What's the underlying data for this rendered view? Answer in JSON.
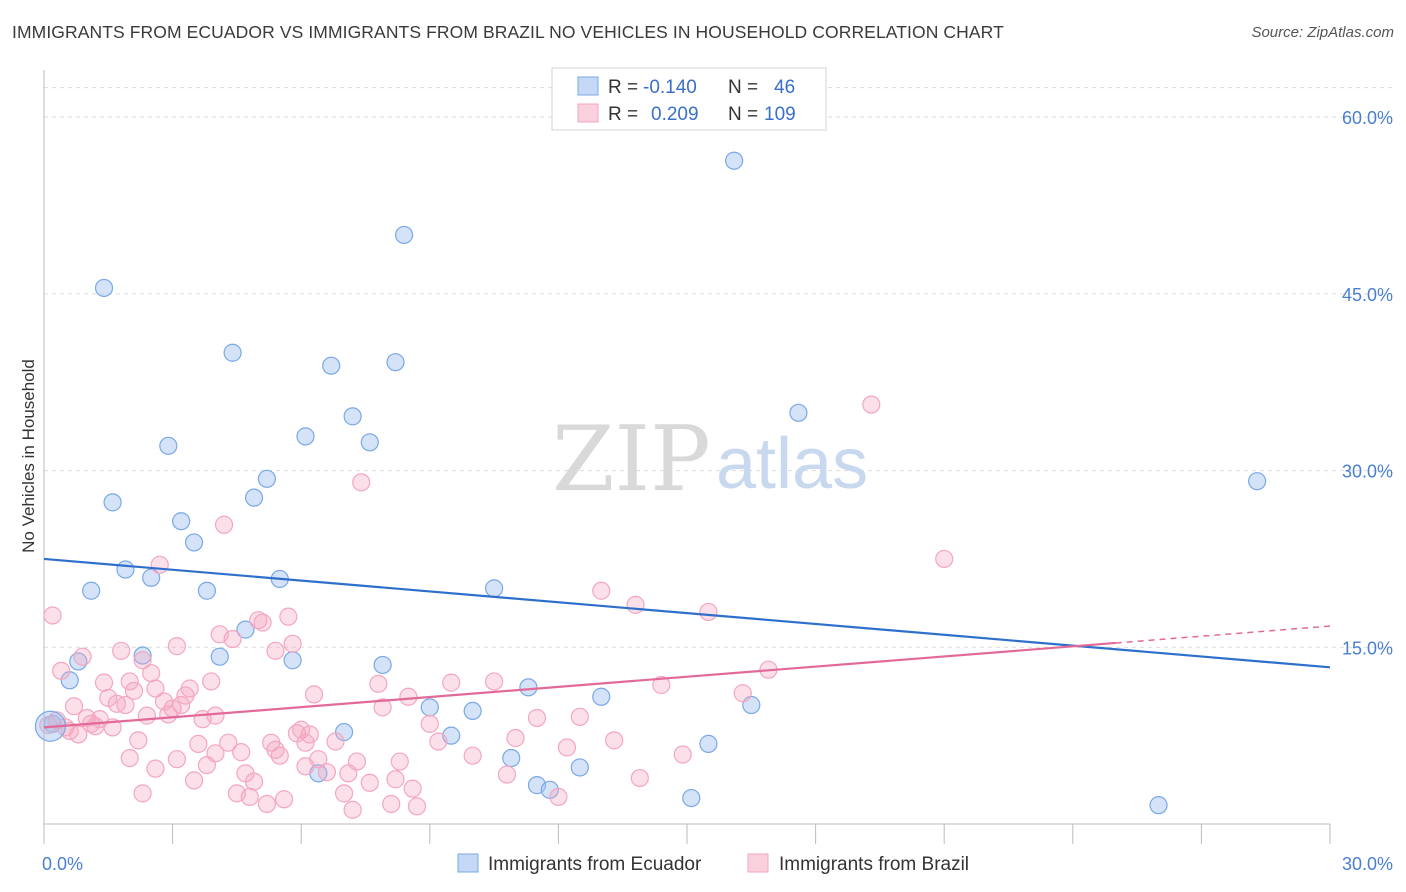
{
  "title": "IMMIGRANTS FROM ECUADOR VS IMMIGRANTS FROM BRAZIL NO VEHICLES IN HOUSEHOLD CORRELATION CHART",
  "source": "Source: ZipAtlas.com",
  "watermark": {
    "zip": "ZIP",
    "atlas": "atlas"
  },
  "chart_data": {
    "type": "scatter",
    "title": "IMMIGRANTS FROM ECUADOR VS IMMIGRANTS FROM BRAZIL NO VEHICLES IN HOUSEHOLD CORRELATION CHART",
    "xlabel": "",
    "ylabel": "No Vehicles in Household",
    "xlim": [
      0,
      30
    ],
    "ylim": [
      0,
      64
    ],
    "x_tick_labels": [
      "0.0%",
      "30.0%"
    ],
    "y_ticks": [
      15,
      30,
      45,
      60
    ],
    "y_tick_labels": [
      "15.0%",
      "30.0%",
      "45.0%",
      "60.0%"
    ],
    "grid": true,
    "legend_position": "top-center",
    "legend": {
      "rows": [
        {
          "r_label": "R =",
          "r_value": "-0.140",
          "n_label": "N =",
          "n_value": "46"
        },
        {
          "r_label": "R =",
          "r_value": "0.209",
          "n_label": "N =",
          "n_value": "109"
        }
      ]
    },
    "series": [
      {
        "name": "Immigrants from Ecuador",
        "color": "#7aa8e8",
        "line_color": "#2f6fcc",
        "trend": {
          "x": [
            0,
            30
          ],
          "y": [
            22.5,
            13.3
          ],
          "dashed_from": null
        },
        "points": [
          [
            0.2,
            8.5
          ],
          [
            0.6,
            12.2
          ],
          [
            0.8,
            13.8
          ],
          [
            1.1,
            19.8
          ],
          [
            1.4,
            45.5
          ],
          [
            1.6,
            27.3
          ],
          [
            1.9,
            21.6
          ],
          [
            2.3,
            14.3
          ],
          [
            2.5,
            20.9
          ],
          [
            2.9,
            32.1
          ],
          [
            3.2,
            25.7
          ],
          [
            3.5,
            23.9
          ],
          [
            3.8,
            19.8
          ],
          [
            4.1,
            14.2
          ],
          [
            4.4,
            40.0
          ],
          [
            4.7,
            16.5
          ],
          [
            4.9,
            27.7
          ],
          [
            5.2,
            29.3
          ],
          [
            5.5,
            20.8
          ],
          [
            5.8,
            13.9
          ],
          [
            6.1,
            32.9
          ],
          [
            6.4,
            4.3
          ],
          [
            6.7,
            38.9
          ],
          [
            7.0,
            7.8
          ],
          [
            7.2,
            34.6
          ],
          [
            7.6,
            32.4
          ],
          [
            7.9,
            13.5
          ],
          [
            8.2,
            39.2
          ],
          [
            8.4,
            50.0
          ],
          [
            9.0,
            9.9
          ],
          [
            9.5,
            7.5
          ],
          [
            10.0,
            9.6
          ],
          [
            10.5,
            20.0
          ],
          [
            10.9,
            5.6
          ],
          [
            11.3,
            11.6
          ],
          [
            11.5,
            3.3
          ],
          [
            11.8,
            2.9
          ],
          [
            12.5,
            4.8
          ],
          [
            13.0,
            10.8
          ],
          [
            15.1,
            2.2
          ],
          [
            15.5,
            6.8
          ],
          [
            16.1,
            56.3
          ],
          [
            16.5,
            10.1
          ],
          [
            17.6,
            34.9
          ],
          [
            26.0,
            1.6
          ],
          [
            28.3,
            29.1
          ]
        ]
      },
      {
        "name": "Immigrants from Brazil",
        "color": "#f4a6c0",
        "line_color": "#e26a98",
        "trend": {
          "x": [
            0,
            30
          ],
          "y": [
            8.2,
            16.8
          ],
          "dashed_from": 25.0
        },
        "points": [
          [
            0.1,
            8.4
          ],
          [
            0.2,
            17.7
          ],
          [
            0.3,
            8.8
          ],
          [
            0.4,
            13.0
          ],
          [
            0.5,
            8.2
          ],
          [
            0.6,
            7.9
          ],
          [
            0.7,
            10.0
          ],
          [
            0.8,
            7.6
          ],
          [
            0.9,
            14.2
          ],
          [
            1.0,
            9.0
          ],
          [
            1.1,
            8.5
          ],
          [
            1.2,
            8.3
          ],
          [
            1.3,
            8.9
          ],
          [
            1.4,
            12.0
          ],
          [
            1.5,
            10.7
          ],
          [
            1.6,
            8.2
          ],
          [
            1.7,
            10.2
          ],
          [
            1.8,
            14.7
          ],
          [
            1.9,
            10.1
          ],
          [
            2.0,
            12.1
          ],
          [
            2.0,
            5.6
          ],
          [
            2.1,
            11.3
          ],
          [
            2.2,
            7.1
          ],
          [
            2.3,
            13.9
          ],
          [
            2.4,
            9.2
          ],
          [
            2.5,
            12.8
          ],
          [
            2.6,
            11.5
          ],
          [
            2.6,
            4.7
          ],
          [
            2.7,
            22.0
          ],
          [
            2.8,
            10.4
          ],
          [
            2.9,
            9.3
          ],
          [
            3.0,
            9.8
          ],
          [
            3.1,
            15.1
          ],
          [
            3.1,
            5.5
          ],
          [
            3.2,
            10.1
          ],
          [
            3.3,
            10.9
          ],
          [
            3.4,
            11.5
          ],
          [
            3.5,
            3.7
          ],
          [
            3.6,
            6.8
          ],
          [
            3.7,
            8.9
          ],
          [
            3.8,
            5.0
          ],
          [
            3.9,
            12.1
          ],
          [
            4.0,
            9.2
          ],
          [
            4.0,
            6.0
          ],
          [
            4.1,
            16.1
          ],
          [
            4.2,
            25.4
          ],
          [
            4.3,
            6.9
          ],
          [
            4.4,
            15.7
          ],
          [
            4.5,
            2.6
          ],
          [
            4.6,
            6.1
          ],
          [
            4.7,
            4.3
          ],
          [
            4.8,
            2.3
          ],
          [
            4.9,
            3.6
          ],
          [
            5.0,
            17.3
          ],
          [
            5.1,
            17.1
          ],
          [
            5.2,
            1.7
          ],
          [
            5.3,
            6.9
          ],
          [
            5.4,
            14.7
          ],
          [
            5.5,
            5.8
          ],
          [
            5.6,
            2.1
          ],
          [
            5.7,
            17.6
          ],
          [
            5.8,
            15.3
          ],
          [
            5.9,
            7.7
          ],
          [
            6.0,
            8.0
          ],
          [
            6.1,
            6.9
          ],
          [
            6.2,
            7.6
          ],
          [
            6.3,
            11.0
          ],
          [
            6.4,
            5.5
          ],
          [
            6.6,
            4.4
          ],
          [
            6.8,
            7.0
          ],
          [
            7.0,
            2.6
          ],
          [
            7.1,
            4.3
          ],
          [
            7.2,
            1.2
          ],
          [
            7.3,
            5.3
          ],
          [
            7.4,
            29.0
          ],
          [
            7.6,
            3.5
          ],
          [
            7.8,
            11.9
          ],
          [
            7.9,
            9.9
          ],
          [
            8.1,
            1.7
          ],
          [
            8.2,
            3.8
          ],
          [
            8.3,
            5.3
          ],
          [
            8.5,
            10.8
          ],
          [
            8.7,
            1.5
          ],
          [
            9.0,
            8.5
          ],
          [
            9.5,
            12.0
          ],
          [
            10.0,
            5.8
          ],
          [
            10.5,
            12.1
          ],
          [
            11.0,
            7.3
          ],
          [
            11.5,
            9.0
          ],
          [
            12.0,
            2.3
          ],
          [
            12.5,
            9.1
          ],
          [
            13.0,
            19.8
          ],
          [
            13.3,
            7.1
          ],
          [
            13.8,
            18.6
          ],
          [
            14.4,
            11.8
          ],
          [
            14.9,
            5.9
          ],
          [
            15.5,
            18.0
          ],
          [
            16.3,
            11.1
          ],
          [
            16.9,
            13.1
          ],
          [
            19.3,
            35.6
          ],
          [
            21.0,
            22.5
          ],
          [
            2.3,
            2.6
          ],
          [
            5.4,
            6.3
          ],
          [
            6.1,
            4.9
          ],
          [
            8.6,
            3.0
          ],
          [
            9.2,
            7.0
          ],
          [
            10.8,
            4.2
          ],
          [
            12.2,
            6.5
          ],
          [
            13.9,
            3.9
          ]
        ]
      }
    ]
  }
}
